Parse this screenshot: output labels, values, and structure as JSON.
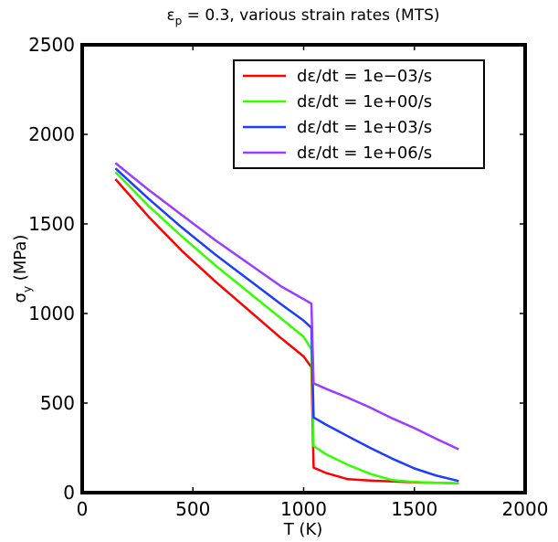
{
  "chart_data": {
    "type": "line",
    "title": "εp = 0.3, various strain rates (MTS)",
    "title_main": "ε",
    "title_sub": "p",
    "title_rest": " = 0.3, various strain rates (MTS)",
    "xlabel": "T (K)",
    "ylabel": "σy (MPa)",
    "ylabel_main": "σ",
    "ylabel_sub": "y",
    "ylabel_rest": " (MPa)",
    "xlim": [
      0,
      2000
    ],
    "ylim": [
      0,
      2500
    ],
    "xticks": [
      "0",
      "500",
      "1000",
      "1500",
      "2000"
    ],
    "yticks": [
      "0",
      "500",
      "1000",
      "1500",
      "2000",
      "2500"
    ],
    "grid": false,
    "legend_position": "top-right",
    "series": [
      {
        "name": "dε/dt = 1e−03/s",
        "color": "#ff0000",
        "x": [
          150,
          300,
          450,
          600,
          750,
          900,
          1000,
          1035,
          1040,
          1045,
          1100,
          1200,
          1300,
          1400,
          1500,
          1600,
          1700
        ],
        "y": [
          1750,
          1540,
          1350,
          1180,
          1020,
          860,
          760,
          700,
          420,
          140,
          110,
          75,
          68,
          62,
          58,
          55,
          52
        ]
      },
      {
        "name": "dε/dt = 1e+00/s",
        "color": "#33ff00",
        "x": [
          150,
          300,
          450,
          600,
          750,
          900,
          1000,
          1035,
          1040,
          1045,
          1100,
          1200,
          1300,
          1400,
          1500,
          1600,
          1700
        ],
        "y": [
          1790,
          1600,
          1430,
          1270,
          1120,
          970,
          870,
          800,
          530,
          260,
          215,
          155,
          105,
          70,
          60,
          55,
          52
        ]
      },
      {
        "name": "dε/dt = 1e+03/s",
        "color": "#1e3cff",
        "x": [
          150,
          300,
          450,
          600,
          750,
          900,
          1000,
          1035,
          1040,
          1045,
          1100,
          1200,
          1300,
          1400,
          1500,
          1600,
          1700
        ],
        "y": [
          1810,
          1640,
          1480,
          1330,
          1190,
          1050,
          960,
          920,
          670,
          420,
          380,
          315,
          250,
          190,
          135,
          95,
          65
        ]
      },
      {
        "name": "dε/dt = 1e+06/s",
        "color": "#9b3cff",
        "x": [
          150,
          300,
          450,
          600,
          750,
          900,
          1000,
          1035,
          1040,
          1045,
          1100,
          1200,
          1300,
          1400,
          1500,
          1600,
          1700
        ],
        "y": [
          1840,
          1690,
          1550,
          1410,
          1280,
          1150,
          1080,
          1055,
          830,
          610,
          580,
          530,
          475,
          415,
          360,
          300,
          242
        ]
      }
    ]
  }
}
